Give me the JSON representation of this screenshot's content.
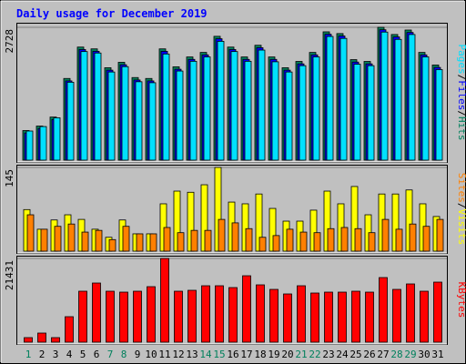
{
  "title": "Daily usage for December 2019",
  "separator": "/",
  "chart_data": [
    {
      "type": "bar",
      "ylim": [
        0,
        2728
      ],
      "yticks": [
        2728
      ],
      "series": [
        {
          "name": "Hits",
          "color": "#00805c",
          "values": [
            608,
            700,
            885,
            1677,
            2322,
            2285,
            1898,
            2009,
            1696,
            1677,
            2285,
            1917,
            2119,
            2212,
            2543,
            2322,
            2119,
            2359,
            2119,
            1898,
            2027,
            2212,
            2635,
            2599,
            2064,
            2027,
            2728,
            2580,
            2672,
            2212,
            1954
          ]
        },
        {
          "name": "Files",
          "color": "#0000ff",
          "values": [
            558,
            650,
            835,
            1627,
            2272,
            2235,
            1848,
            1959,
            1646,
            1627,
            2235,
            1867,
            2069,
            2162,
            2493,
            2272,
            2069,
            2309,
            2069,
            1848,
            1977,
            2162,
            2585,
            2549,
            2014,
            1977,
            2678,
            2530,
            2622,
            2162,
            1904
          ]
        },
        {
          "name": "Pages",
          "color": "#00e0ff",
          "values": [
            598,
            690,
            870,
            1600,
            2230,
            2200,
            1810,
            1920,
            1610,
            1590,
            2180,
            1830,
            2030,
            2120,
            2440,
            2230,
            2030,
            2260,
            2020,
            1810,
            1940,
            2120,
            2540,
            2500,
            1970,
            1940,
            2630,
            2480,
            2580,
            2120,
            1860
          ]
        }
      ]
    },
    {
      "type": "bar",
      "ylim": [
        0,
        145
      ],
      "yticks": [
        145
      ],
      "series": [
        {
          "name": "Visits",
          "color": "#ffff00",
          "values": [
            72,
            38,
            54,
            63,
            55,
            38,
            24,
            54,
            30,
            30,
            82,
            104,
            102,
            115,
            145,
            85,
            82,
            99,
            74,
            52,
            52,
            71,
            104,
            82,
            112,
            63,
            99,
            99,
            106,
            82,
            60
          ]
        },
        {
          "name": "Sites",
          "color": "#ff8000",
          "values": [
            63,
            38,
            43,
            47,
            33,
            36,
            20,
            43,
            30,
            30,
            41,
            32,
            36,
            36,
            55,
            49,
            39,
            24,
            27,
            38,
            33,
            32,
            39,
            41,
            39,
            32,
            55,
            38,
            47,
            43,
            55
          ]
        }
      ]
    },
    {
      "type": "bar",
      "ylim": [
        0,
        21431
      ],
      "yticks": [
        21431
      ],
      "categories": [
        "1",
        "2",
        "3",
        "4",
        "5",
        "6",
        "7",
        "8",
        "9",
        "10",
        "11",
        "12",
        "13",
        "14",
        "15",
        "16",
        "17",
        "18",
        "19",
        "20",
        "21",
        "22",
        "23",
        "24",
        "25",
        "26",
        "27",
        "28",
        "29",
        "30",
        "31"
      ],
      "highlight_categories": [
        0,
        6,
        7,
        13,
        14,
        20,
        21,
        27,
        28
      ],
      "highlight_color": "#00805c",
      "series": [
        {
          "name": "KBytes",
          "color": "#ff0000",
          "values": [
            1164,
            2329,
            1164,
            6521,
            13042,
            15138,
            13042,
            12809,
            13042,
            14207,
            21431,
            13042,
            13275,
            14440,
            14440,
            13974,
            17000,
            14673,
            13508,
            12344,
            14440,
            12577,
            12809,
            12809,
            13042,
            12809,
            16536,
            13508,
            14906,
            13042,
            15371
          ]
        }
      ]
    }
  ]
}
